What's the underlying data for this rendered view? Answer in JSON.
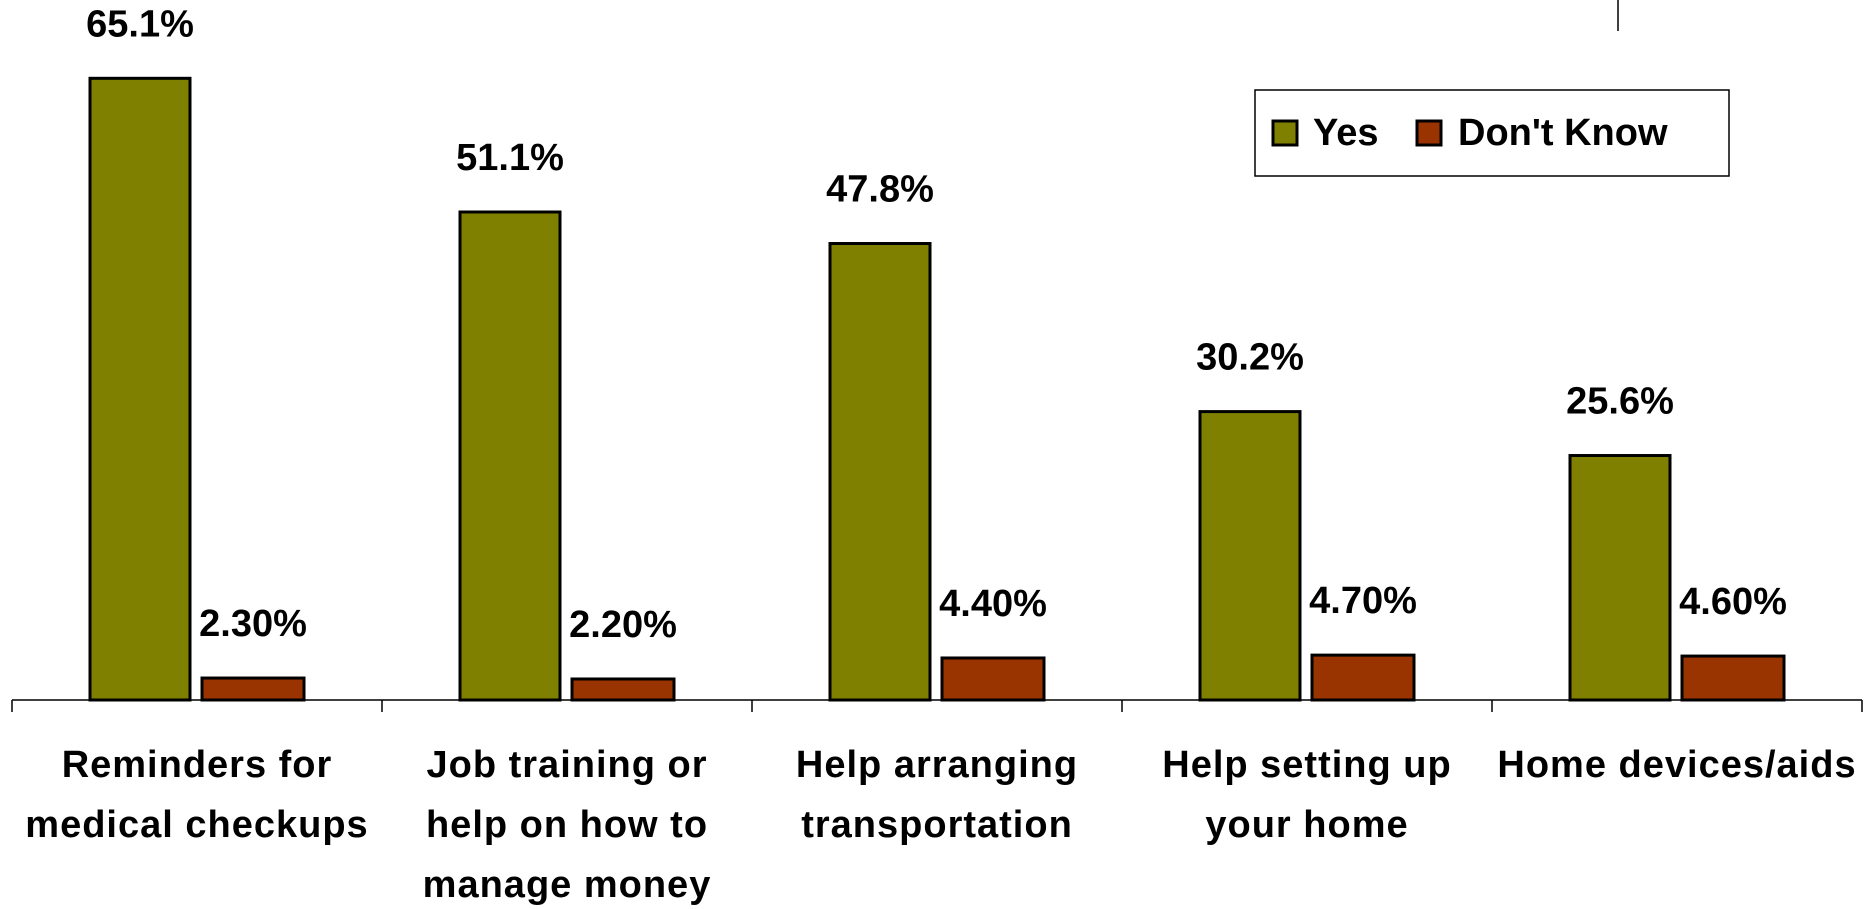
{
  "chart_data": {
    "type": "bar",
    "categories": [
      "Reminders for medical checkups",
      "Job training or help on how to manage money",
      "Help arranging transportation",
      "Help setting up your home",
      "Home devices/aids"
    ],
    "series": [
      {
        "name": "Yes",
        "color": "#808000",
        "values": [
          65.1,
          51.1,
          47.8,
          30.2,
          25.6
        ],
        "value_labels": [
          "65.1%",
          "51.1%",
          "47.8%",
          "30.2%",
          "25.6%"
        ]
      },
      {
        "name": "Don't Know",
        "color": "#993300",
        "values": [
          2.3,
          2.2,
          4.4,
          4.7,
          4.6
        ],
        "value_labels": [
          "2.30%",
          "2.20%",
          "4.40%",
          "4.70%",
          "4.60%"
        ]
      }
    ],
    "ylim": [
      0,
      73.3
    ],
    "legend": "upper right"
  }
}
